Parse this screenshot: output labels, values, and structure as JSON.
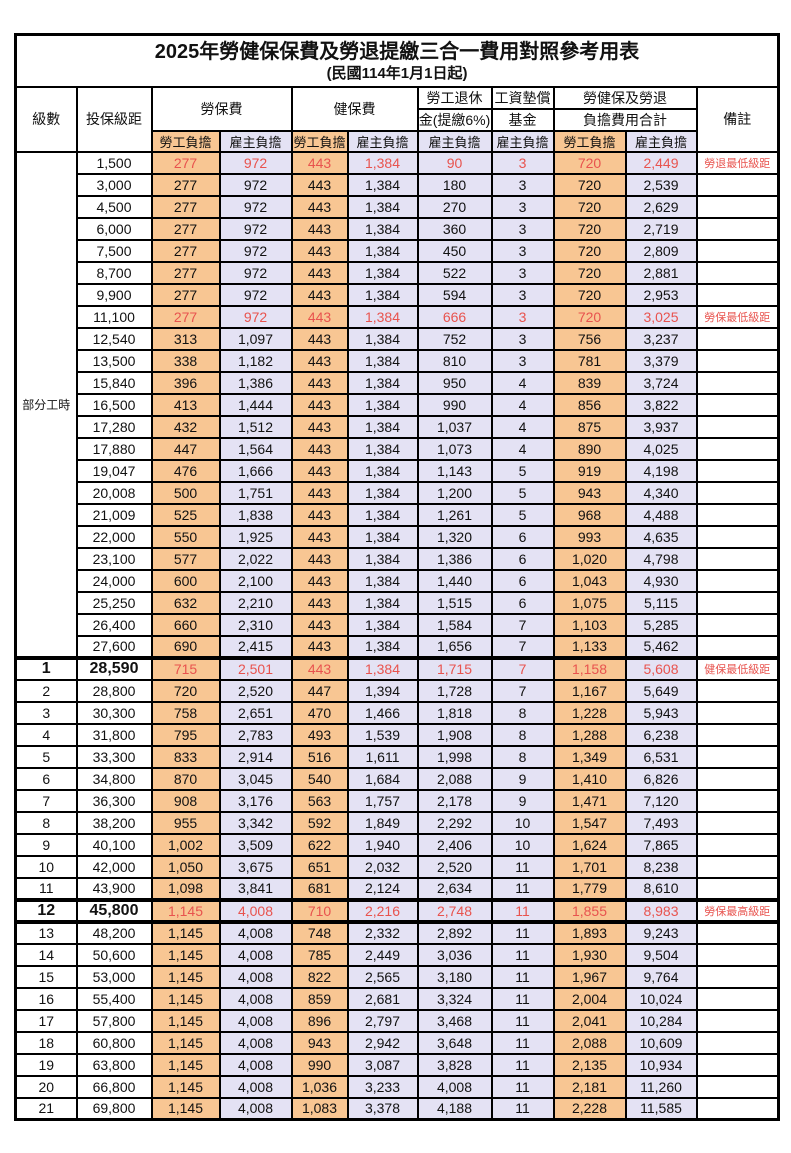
{
  "title": "2025年勞健保保費及勞退提繳三合一費用對照參考用表",
  "subtitle": "(民國114年1月1日起)",
  "header": {
    "level": "級數",
    "bracket": "投保級距",
    "labor_insurance": "勞保費",
    "health_insurance": "健保費",
    "pension_line1": "勞工退休",
    "pension_line2": "金(提繳6%)",
    "wage_fund_line1": "工資墊償",
    "wage_fund_line2": "基金",
    "total_line1": "勞健保及勞退",
    "total_line2": "負擔費用合計",
    "remark": "備註",
    "employee_share": "勞工負擔",
    "employer_share": "雇主負擔"
  },
  "part_time_label": "部分工時",
  "colors": {
    "employee_bg": "#F8C693",
    "employer_bg": "#E4E2F4",
    "highlight_text": "#E8534E",
    "border": "#000000"
  },
  "rows": [
    {
      "level": "",
      "bracket": "1,500",
      "values": [
        "277",
        "972",
        "443",
        "1,384",
        "90",
        "3",
        "720",
        "2,449"
      ],
      "remark": "勞退最低級距",
      "highlight": true
    },
    {
      "level": "",
      "bracket": "3,000",
      "values": [
        "277",
        "972",
        "443",
        "1,384",
        "180",
        "3",
        "720",
        "2,539"
      ],
      "remark": ""
    },
    {
      "level": "",
      "bracket": "4,500",
      "values": [
        "277",
        "972",
        "443",
        "1,384",
        "270",
        "3",
        "720",
        "2,629"
      ],
      "remark": ""
    },
    {
      "level": "",
      "bracket": "6,000",
      "values": [
        "277",
        "972",
        "443",
        "1,384",
        "360",
        "3",
        "720",
        "2,719"
      ],
      "remark": ""
    },
    {
      "level": "",
      "bracket": "7,500",
      "values": [
        "277",
        "972",
        "443",
        "1,384",
        "450",
        "3",
        "720",
        "2,809"
      ],
      "remark": ""
    },
    {
      "level": "",
      "bracket": "8,700",
      "values": [
        "277",
        "972",
        "443",
        "1,384",
        "522",
        "3",
        "720",
        "2,881"
      ],
      "remark": ""
    },
    {
      "level": "",
      "bracket": "9,900",
      "values": [
        "277",
        "972",
        "443",
        "1,384",
        "594",
        "3",
        "720",
        "2,953"
      ],
      "remark": ""
    },
    {
      "level": "",
      "bracket": "11,100",
      "values": [
        "277",
        "972",
        "443",
        "1,384",
        "666",
        "3",
        "720",
        "3,025"
      ],
      "remark": "勞保最低級距",
      "highlight": true
    },
    {
      "level": "",
      "bracket": "12,540",
      "values": [
        "313",
        "1,097",
        "443",
        "1,384",
        "752",
        "3",
        "756",
        "3,237"
      ],
      "remark": ""
    },
    {
      "level": "",
      "bracket": "13,500",
      "values": [
        "338",
        "1,182",
        "443",
        "1,384",
        "810",
        "3",
        "781",
        "3,379"
      ],
      "remark": ""
    },
    {
      "level": "",
      "bracket": "15,840",
      "values": [
        "396",
        "1,386",
        "443",
        "1,384",
        "950",
        "4",
        "839",
        "3,724"
      ],
      "remark": ""
    },
    {
      "level": "",
      "bracket": "16,500",
      "values": [
        "413",
        "1,444",
        "443",
        "1,384",
        "990",
        "4",
        "856",
        "3,822"
      ],
      "remark": ""
    },
    {
      "level": "",
      "bracket": "17,280",
      "values": [
        "432",
        "1,512",
        "443",
        "1,384",
        "1,037",
        "4",
        "875",
        "3,937"
      ],
      "remark": ""
    },
    {
      "level": "",
      "bracket": "17,880",
      "values": [
        "447",
        "1,564",
        "443",
        "1,384",
        "1,073",
        "4",
        "890",
        "4,025"
      ],
      "remark": ""
    },
    {
      "level": "",
      "bracket": "19,047",
      "values": [
        "476",
        "1,666",
        "443",
        "1,384",
        "1,143",
        "5",
        "919",
        "4,198"
      ],
      "remark": ""
    },
    {
      "level": "",
      "bracket": "20,008",
      "values": [
        "500",
        "1,751",
        "443",
        "1,384",
        "1,200",
        "5",
        "943",
        "4,340"
      ],
      "remark": ""
    },
    {
      "level": "",
      "bracket": "21,009",
      "values": [
        "525",
        "1,838",
        "443",
        "1,384",
        "1,261",
        "5",
        "968",
        "4,488"
      ],
      "remark": ""
    },
    {
      "level": "",
      "bracket": "22,000",
      "values": [
        "550",
        "1,925",
        "443",
        "1,384",
        "1,320",
        "6",
        "993",
        "4,635"
      ],
      "remark": ""
    },
    {
      "level": "",
      "bracket": "23,100",
      "values": [
        "577",
        "2,022",
        "443",
        "1,384",
        "1,386",
        "6",
        "1,020",
        "4,798"
      ],
      "remark": ""
    },
    {
      "level": "",
      "bracket": "24,000",
      "values": [
        "600",
        "2,100",
        "443",
        "1,384",
        "1,440",
        "6",
        "1,043",
        "4,930"
      ],
      "remark": ""
    },
    {
      "level": "",
      "bracket": "25,250",
      "values": [
        "632",
        "2,210",
        "443",
        "1,384",
        "1,515",
        "6",
        "1,075",
        "5,115"
      ],
      "remark": ""
    },
    {
      "level": "",
      "bracket": "26,400",
      "values": [
        "660",
        "2,310",
        "443",
        "1,384",
        "1,584",
        "7",
        "1,103",
        "5,285"
      ],
      "remark": ""
    },
    {
      "level": "",
      "bracket": "27,600",
      "values": [
        "690",
        "2,415",
        "443",
        "1,384",
        "1,656",
        "7",
        "1,133",
        "5,462"
      ],
      "remark": ""
    },
    {
      "level": "1",
      "bracket": "28,590",
      "values": [
        "715",
        "2,501",
        "443",
        "1,384",
        "1,715",
        "7",
        "1,158",
        "5,608"
      ],
      "remark": "健保最低級距",
      "highlight": true,
      "bold": true,
      "thick_top": true
    },
    {
      "level": "2",
      "bracket": "28,800",
      "values": [
        "720",
        "2,520",
        "447",
        "1,394",
        "1,728",
        "7",
        "1,167",
        "5,649"
      ],
      "remark": ""
    },
    {
      "level": "3",
      "bracket": "30,300",
      "values": [
        "758",
        "2,651",
        "470",
        "1,466",
        "1,818",
        "8",
        "1,228",
        "5,943"
      ],
      "remark": ""
    },
    {
      "level": "4",
      "bracket": "31,800",
      "values": [
        "795",
        "2,783",
        "493",
        "1,539",
        "1,908",
        "8",
        "1,288",
        "6,238"
      ],
      "remark": ""
    },
    {
      "level": "5",
      "bracket": "33,300",
      "values": [
        "833",
        "2,914",
        "516",
        "1,611",
        "1,998",
        "8",
        "1,349",
        "6,531"
      ],
      "remark": ""
    },
    {
      "level": "6",
      "bracket": "34,800",
      "values": [
        "870",
        "3,045",
        "540",
        "1,684",
        "2,088",
        "9",
        "1,410",
        "6,826"
      ],
      "remark": ""
    },
    {
      "level": "7",
      "bracket": "36,300",
      "values": [
        "908",
        "3,176",
        "563",
        "1,757",
        "2,178",
        "9",
        "1,471",
        "7,120"
      ],
      "remark": ""
    },
    {
      "level": "8",
      "bracket": "38,200",
      "values": [
        "955",
        "3,342",
        "592",
        "1,849",
        "2,292",
        "10",
        "1,547",
        "7,493"
      ],
      "remark": ""
    },
    {
      "level": "9",
      "bracket": "40,100",
      "values": [
        "1,002",
        "3,509",
        "622",
        "1,940",
        "2,406",
        "10",
        "1,624",
        "7,865"
      ],
      "remark": ""
    },
    {
      "level": "10",
      "bracket": "42,000",
      "values": [
        "1,050",
        "3,675",
        "651",
        "2,032",
        "2,520",
        "11",
        "1,701",
        "8,238"
      ],
      "remark": ""
    },
    {
      "level": "11",
      "bracket": "43,900",
      "values": [
        "1,098",
        "3,841",
        "681",
        "2,124",
        "2,634",
        "11",
        "1,779",
        "8,610"
      ],
      "remark": ""
    },
    {
      "level": "12",
      "bracket": "45,800",
      "values": [
        "1,145",
        "4,008",
        "710",
        "2,216",
        "2,748",
        "11",
        "1,855",
        "8,983"
      ],
      "remark": "勞保最高級距",
      "highlight": true,
      "bold": true,
      "thick_top": true,
      "thick_bottom": true
    },
    {
      "level": "13",
      "bracket": "48,200",
      "values": [
        "1,145",
        "4,008",
        "748",
        "2,332",
        "2,892",
        "11",
        "1,893",
        "9,243"
      ],
      "remark": ""
    },
    {
      "level": "14",
      "bracket": "50,600",
      "values": [
        "1,145",
        "4,008",
        "785",
        "2,449",
        "3,036",
        "11",
        "1,930",
        "9,504"
      ],
      "remark": ""
    },
    {
      "level": "15",
      "bracket": "53,000",
      "values": [
        "1,145",
        "4,008",
        "822",
        "2,565",
        "3,180",
        "11",
        "1,967",
        "9,764"
      ],
      "remark": ""
    },
    {
      "level": "16",
      "bracket": "55,400",
      "values": [
        "1,145",
        "4,008",
        "859",
        "2,681",
        "3,324",
        "11",
        "2,004",
        "10,024"
      ],
      "remark": ""
    },
    {
      "level": "17",
      "bracket": "57,800",
      "values": [
        "1,145",
        "4,008",
        "896",
        "2,797",
        "3,468",
        "11",
        "2,041",
        "10,284"
      ],
      "remark": ""
    },
    {
      "level": "18",
      "bracket": "60,800",
      "values": [
        "1,145",
        "4,008",
        "943",
        "2,942",
        "3,648",
        "11",
        "2,088",
        "10,609"
      ],
      "remark": ""
    },
    {
      "level": "19",
      "bracket": "63,800",
      "values": [
        "1,145",
        "4,008",
        "990",
        "3,087",
        "3,828",
        "11",
        "2,135",
        "10,934"
      ],
      "remark": ""
    },
    {
      "level": "20",
      "bracket": "66,800",
      "values": [
        "1,145",
        "4,008",
        "1,036",
        "3,233",
        "4,008",
        "11",
        "2,181",
        "11,260"
      ],
      "remark": ""
    },
    {
      "level": "21",
      "bracket": "69,800",
      "values": [
        "1,145",
        "4,008",
        "1,083",
        "3,378",
        "4,188",
        "11",
        "2,228",
        "11,585"
      ],
      "remark": ""
    }
  ]
}
